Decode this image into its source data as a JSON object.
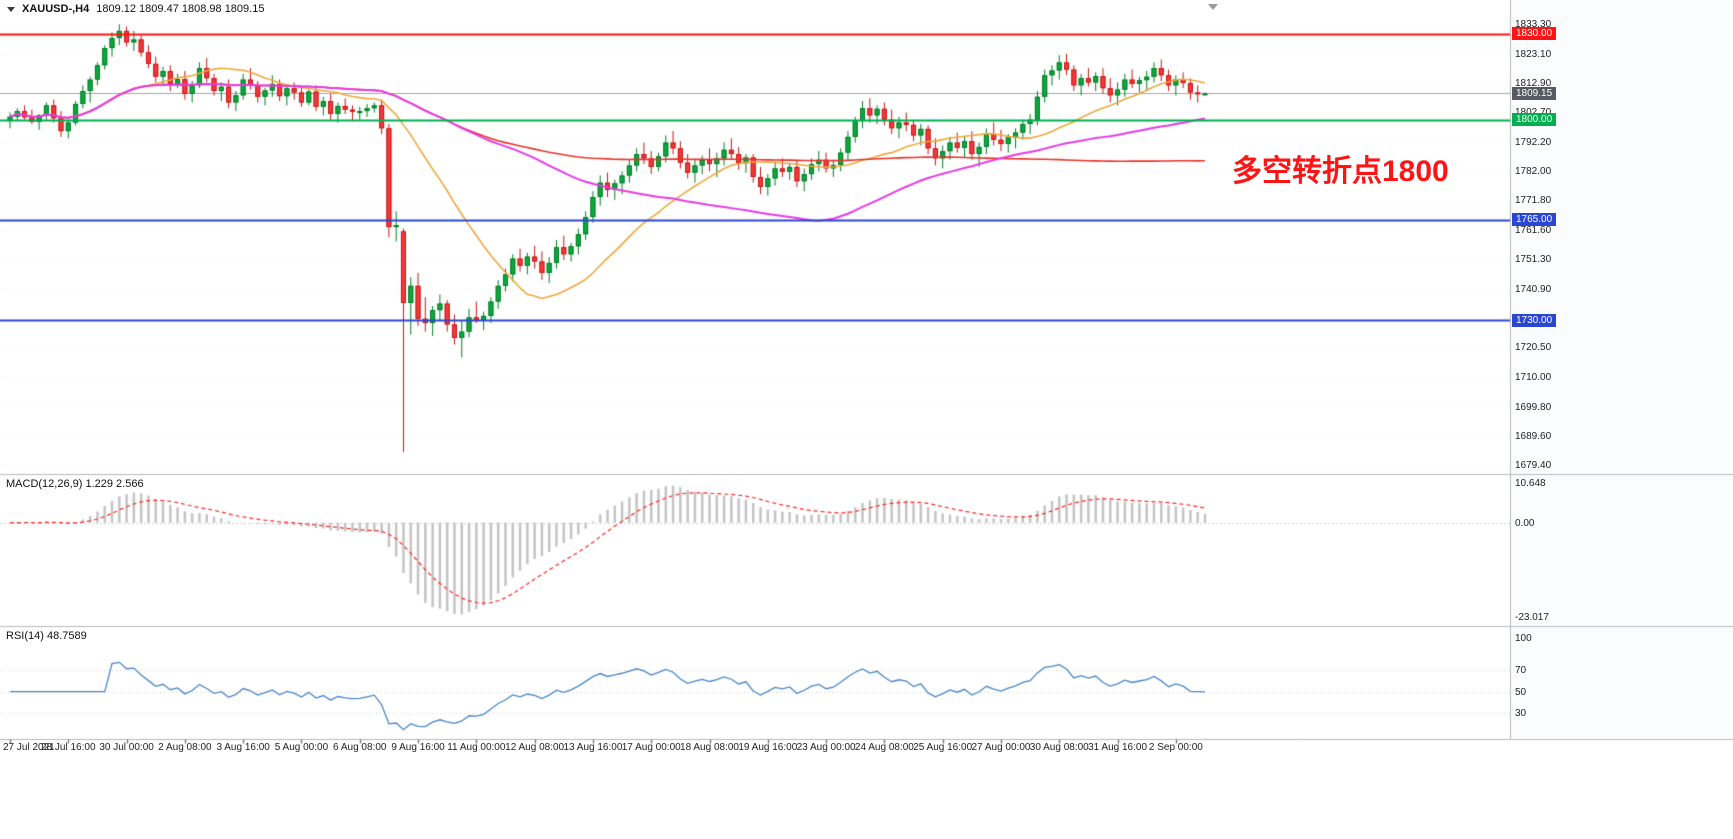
{
  "window": {
    "symbol_period": "XAUUSD-,H4",
    "ohlc": "1809.12 1809.47 1808.98 1809.15"
  },
  "chart_data": {
    "type": "candlestick",
    "title": "XAUUSD-,H4",
    "symbol": "XAUUSD-",
    "timeframe": "H4",
    "ohlc_display": {
      "open": "1809.12",
      "high": "1809.47",
      "low": "1808.98",
      "close": "1809.15"
    },
    "price_axis_range": [
      1677.0,
      1835.5
    ],
    "price_axis_labels": [
      "1833.30",
      "1823.10",
      "1812.90",
      "1802.70",
      "1792.20",
      "1782.00",
      "1771.80",
      "1761.60",
      "1751.30",
      "1740.90",
      "1720.50",
      "1710.00",
      "1699.80",
      "1689.60",
      "1679.40"
    ],
    "time_axis_labels": [
      "27 Jul 2021",
      "28 Jul 16:00",
      "30 Jul 00:00",
      "2 Aug 08:00",
      "3 Aug 16:00",
      "5 Aug 00:00",
      "6 Aug 08:00",
      "9 Aug 16:00",
      "11 Aug 00:00",
      "12 Aug 08:00",
      "13 Aug 16:00",
      "17 Aug 00:00",
      "18 Aug 08:00",
      "19 Aug 16:00",
      "23 Aug 00:00",
      "24 Aug 08:00",
      "25 Aug 16:00",
      "27 Aug 00:00",
      "30 Aug 08:00",
      "31 Aug 16:00",
      "2 Sep 00:00"
    ],
    "horizontal_lines": [
      {
        "value": 1830.0,
        "label": "1830.00",
        "color": "#fe1414",
        "text_color": "#ffffff"
      },
      {
        "value": 1800.0,
        "label": "1800.00",
        "color": "#00b050",
        "text_color": "#ffffff"
      },
      {
        "value": 1765.0,
        "label": "1765.00",
        "color": "#2c47cf",
        "text_color": "#ffffff"
      },
      {
        "value": 1730.0,
        "label": "1730.00",
        "color": "#2c47cf",
        "text_color": "#ffffff"
      }
    ],
    "current_price": {
      "value": 1809.15,
      "label": "1809.15",
      "line_color": "#a8a8a8",
      "badge_color": "#555b61"
    },
    "annotation": {
      "text": "多空转折点1800",
      "color": "#fe1414"
    },
    "candle_colors": {
      "up_fill": "#0ca93c",
      "up_border": "#067d2a",
      "down_fill": "#f23a3a",
      "down_border": "#c91616"
    },
    "moving_averages": [
      {
        "name": "fast-ma",
        "period": 20,
        "color": "#efa93f"
      },
      {
        "name": "slow-ma",
        "period": 130,
        "color": "#e8332a"
      },
      {
        "name": "mid-ma",
        "period": 60,
        "color": "#e53ce5"
      }
    ],
    "indicators": {
      "macd": {
        "label": "MACD(12,26,9) 1.229 2.566",
        "params": [
          12,
          26,
          9
        ],
        "current_values": [
          1.229,
          2.566
        ],
        "scale_labels": [
          "10.648",
          "0.00",
          "-23.017"
        ],
        "histogram_color": "#c4c4c4",
        "signal_color": "#ff2a2a"
      },
      "rsi": {
        "label": "RSI(14) 48.7589",
        "period": 14,
        "current_value": 48.7589,
        "scale_labels": [
          "100",
          "70",
          "50",
          "30"
        ],
        "scale_values": [
          100,
          70,
          50,
          30
        ],
        "display_range": [
          8,
          107
        ],
        "line_color": "#4a87c8"
      }
    },
    "candles": [
      [
        1799.5,
        1802.5,
        1797.0,
        1801.0
      ],
      [
        1801.0,
        1804.0,
        1799.5,
        1803.0
      ],
      [
        1803.0,
        1805.0,
        1800.0,
        1800.8
      ],
      [
        1800.8,
        1803.5,
        1798.5,
        1799.2
      ],
      [
        1799.2,
        1802.0,
        1796.5,
        1801.5
      ],
      [
        1801.5,
        1806.0,
        1800.0,
        1805.0
      ],
      [
        1805.0,
        1807.0,
        1799.0,
        1800.5
      ],
      [
        1800.5,
        1803.0,
        1794.0,
        1796.0
      ],
      [
        1796.0,
        1800.0,
        1793.5,
        1799.0
      ],
      [
        1799.0,
        1806.5,
        1798.0,
        1805.5
      ],
      [
        1805.5,
        1812.0,
        1804.0,
        1810.0
      ],
      [
        1810.0,
        1815.0,
        1806.0,
        1814.0
      ],
      [
        1814.0,
        1820.0,
        1812.0,
        1819.0
      ],
      [
        1819.0,
        1826.0,
        1817.5,
        1825.0
      ],
      [
        1825.0,
        1830.5,
        1822.0,
        1828.5
      ],
      [
        1828.5,
        1833.3,
        1826.0,
        1831.0
      ],
      [
        1831.0,
        1832.5,
        1825.5,
        1827.0
      ],
      [
        1827.0,
        1831.0,
        1824.0,
        1828.0
      ],
      [
        1828.0,
        1829.5,
        1822.0,
        1823.5
      ],
      [
        1823.5,
        1826.0,
        1818.0,
        1819.5
      ],
      [
        1819.5,
        1822.0,
        1813.0,
        1815.0
      ],
      [
        1815.0,
        1818.5,
        1812.0,
        1817.0
      ],
      [
        1817.0,
        1819.0,
        1810.0,
        1812.5
      ],
      [
        1812.5,
        1816.0,
        1811.0,
        1814.2
      ],
      [
        1814.2,
        1817.0,
        1807.0,
        1809.0
      ],
      [
        1809.0,
        1813.5,
        1806.0,
        1812.0
      ],
      [
        1812.0,
        1820.0,
        1811.0,
        1818.0
      ],
      [
        1818.0,
        1821.5,
        1813.0,
        1814.5
      ],
      [
        1814.5,
        1816.0,
        1808.5,
        1810.0
      ],
      [
        1810.0,
        1813.0,
        1806.5,
        1811.5
      ],
      [
        1811.5,
        1814.0,
        1804.0,
        1806.0
      ],
      [
        1806.0,
        1810.0,
        1803.0,
        1808.5
      ],
      [
        1808.5,
        1816.0,
        1807.0,
        1814.0
      ],
      [
        1814.0,
        1818.0,
        1810.5,
        1812.0
      ],
      [
        1812.0,
        1813.5,
        1806.0,
        1808.0
      ],
      [
        1808.0,
        1811.0,
        1805.0,
        1810.2
      ],
      [
        1810.2,
        1815.5,
        1808.0,
        1812.5
      ],
      [
        1812.5,
        1814.0,
        1806.5,
        1808.2
      ],
      [
        1808.2,
        1812.0,
        1805.0,
        1811.0
      ],
      [
        1811.0,
        1813.0,
        1807.0,
        1809.5
      ],
      [
        1809.5,
        1811.5,
        1804.5,
        1806.0
      ],
      [
        1806.0,
        1810.5,
        1805.0,
        1809.8
      ],
      [
        1809.8,
        1812.0,
        1803.0,
        1804.5
      ],
      [
        1804.5,
        1808.0,
        1801.5,
        1806.5
      ],
      [
        1806.5,
        1809.0,
        1800.0,
        1802.0
      ],
      [
        1802.0,
        1806.0,
        1799.0,
        1804.8
      ],
      [
        1804.8,
        1807.5,
        1802.0,
        1803.5
      ],
      [
        1803.5,
        1805.0,
        1799.5,
        1802.8
      ],
      [
        1802.8,
        1804.5,
        1800.0,
        1803.0
      ],
      [
        1803.0,
        1805.5,
        1801.0,
        1804.0
      ],
      [
        1804.0,
        1806.0,
        1802.5,
        1805.0
      ],
      [
        1805.0,
        1807.0,
        1795.0,
        1797.0
      ],
      [
        1797.0,
        1798.5,
        1759.0,
        1762.5
      ],
      [
        1762.5,
        1768.0,
        1757.5,
        1763.2
      ],
      [
        1761.0,
        1762.0,
        1684.0,
        1736.0
      ],
      [
        1736.0,
        1745.0,
        1725.0,
        1742.0
      ],
      [
        1742.0,
        1746.5,
        1728.0,
        1730.5
      ],
      [
        1730.5,
        1738.0,
        1726.0,
        1729.0
      ],
      [
        1729.0,
        1735.0,
        1724.5,
        1733.5
      ],
      [
        1733.5,
        1739.0,
        1730.0,
        1735.8
      ],
      [
        1735.8,
        1737.0,
        1726.0,
        1728.5
      ],
      [
        1728.5,
        1732.0,
        1721.5,
        1723.8
      ],
      [
        1723.8,
        1730.0,
        1717.0,
        1726.0
      ],
      [
        1726.0,
        1734.0,
        1724.0,
        1731.0
      ],
      [
        1731.0,
        1736.5,
        1729.0,
        1729.8
      ],
      [
        1729.8,
        1733.0,
        1726.5,
        1731.5
      ],
      [
        1731.5,
        1738.0,
        1729.0,
        1736.5
      ],
      [
        1736.5,
        1744.0,
        1734.0,
        1742.0
      ],
      [
        1742.0,
        1748.0,
        1740.0,
        1746.0
      ],
      [
        1746.0,
        1753.0,
        1743.5,
        1751.5
      ],
      [
        1751.5,
        1755.0,
        1747.0,
        1749.0
      ],
      [
        1749.0,
        1753.5,
        1746.0,
        1752.2
      ],
      [
        1752.2,
        1756.0,
        1748.0,
        1750.5
      ],
      [
        1750.5,
        1754.0,
        1744.0,
        1746.5
      ],
      [
        1746.5,
        1752.0,
        1743.0,
        1750.0
      ],
      [
        1750.0,
        1758.0,
        1748.0,
        1755.5
      ],
      [
        1755.5,
        1759.5,
        1751.0,
        1753.0
      ],
      [
        1753.0,
        1757.0,
        1750.5,
        1755.8
      ],
      [
        1755.8,
        1762.0,
        1753.0,
        1760.0
      ],
      [
        1760.0,
        1768.0,
        1758.0,
        1766.0
      ],
      [
        1766.0,
        1775.0,
        1764.0,
        1773.0
      ],
      [
        1773.0,
        1780.5,
        1770.0,
        1778.0
      ],
      [
        1778.0,
        1781.5,
        1773.0,
        1775.5
      ],
      [
        1775.5,
        1779.0,
        1772.0,
        1777.8
      ],
      [
        1777.8,
        1782.0,
        1774.0,
        1780.5
      ],
      [
        1780.5,
        1786.0,
        1778.0,
        1784.0
      ],
      [
        1784.0,
        1790.0,
        1782.0,
        1788.0
      ],
      [
        1788.0,
        1792.0,
        1784.5,
        1786.5
      ],
      [
        1786.5,
        1789.0,
        1781.0,
        1783.5
      ],
      [
        1783.5,
        1788.5,
        1782.0,
        1787.2
      ],
      [
        1787.2,
        1794.5,
        1785.0,
        1792.0
      ],
      [
        1792.0,
        1796.0,
        1788.0,
        1790.0
      ],
      [
        1790.0,
        1792.5,
        1783.0,
        1785.0
      ],
      [
        1785.0,
        1788.0,
        1779.5,
        1781.5
      ],
      [
        1781.5,
        1786.0,
        1778.0,
        1784.0
      ],
      [
        1784.0,
        1787.5,
        1781.0,
        1786.0
      ],
      [
        1786.0,
        1790.0,
        1782.0,
        1784.5
      ],
      [
        1784.5,
        1788.5,
        1780.0,
        1786.5
      ],
      [
        1786.5,
        1792.0,
        1784.0,
        1789.5
      ],
      [
        1789.5,
        1793.5,
        1786.0,
        1788.0
      ],
      [
        1788.0,
        1790.5,
        1782.5,
        1784.8
      ],
      [
        1784.8,
        1788.0,
        1781.5,
        1786.8
      ],
      [
        1786.8,
        1788.0,
        1778.0,
        1780.0
      ],
      [
        1780.0,
        1783.5,
        1774.0,
        1776.5
      ],
      [
        1776.5,
        1781.0,
        1773.5,
        1779.5
      ],
      [
        1779.5,
        1785.0,
        1777.0,
        1783.0
      ],
      [
        1783.0,
        1786.5,
        1780.0,
        1781.8
      ],
      [
        1781.8,
        1785.0,
        1779.0,
        1783.5
      ],
      [
        1783.5,
        1786.0,
        1776.5,
        1778.5
      ],
      [
        1778.5,
        1783.0,
        1775.0,
        1781.0
      ],
      [
        1781.0,
        1786.5,
        1779.0,
        1784.5
      ],
      [
        1784.5,
        1789.0,
        1782.0,
        1786.0
      ],
      [
        1786.0,
        1788.5,
        1781.5,
        1783.0
      ],
      [
        1783.0,
        1786.0,
        1780.0,
        1784.2
      ],
      [
        1784.2,
        1790.0,
        1782.0,
        1788.5
      ],
      [
        1788.5,
        1796.0,
        1786.0,
        1794.0
      ],
      [
        1794.0,
        1801.0,
        1792.0,
        1799.5
      ],
      [
        1799.5,
        1806.5,
        1797.0,
        1804.0
      ],
      [
        1804.0,
        1807.5,
        1799.0,
        1801.5
      ],
      [
        1801.5,
        1805.0,
        1798.5,
        1803.8
      ],
      [
        1803.8,
        1806.0,
        1798.0,
        1800.0
      ],
      [
        1800.0,
        1803.5,
        1795.0,
        1797.0
      ],
      [
        1797.0,
        1801.0,
        1793.5,
        1799.0
      ],
      [
        1799.0,
        1802.5,
        1796.0,
        1798.2
      ],
      [
        1798.2,
        1800.0,
        1792.5,
        1794.5
      ],
      [
        1794.5,
        1798.5,
        1791.0,
        1796.8
      ],
      [
        1796.8,
        1798.0,
        1788.0,
        1790.0
      ],
      [
        1790.0,
        1793.5,
        1784.0,
        1786.5
      ],
      [
        1786.5,
        1791.0,
        1783.0,
        1789.0
      ],
      [
        1789.0,
        1794.0,
        1786.0,
        1792.0
      ],
      [
        1792.0,
        1795.5,
        1788.5,
        1790.2
      ],
      [
        1790.2,
        1794.0,
        1787.0,
        1792.5
      ],
      [
        1792.5,
        1796.0,
        1786.0,
        1788.0
      ],
      [
        1788.0,
        1792.0,
        1783.5,
        1790.5
      ],
      [
        1790.5,
        1797.0,
        1788.0,
        1795.0
      ],
      [
        1795.0,
        1799.0,
        1791.0,
        1793.0
      ],
      [
        1793.0,
        1796.5,
        1789.0,
        1791.5
      ],
      [
        1791.5,
        1795.0,
        1788.5,
        1793.8
      ],
      [
        1793.8,
        1797.0,
        1790.0,
        1795.5
      ],
      [
        1795.5,
        1800.0,
        1793.0,
        1798.5
      ],
      [
        1798.5,
        1802.0,
        1795.0,
        1800.0
      ],
      [
        1800.0,
        1810.0,
        1798.0,
        1808.0
      ],
      [
        1808.0,
        1817.5,
        1806.0,
        1815.5
      ],
      [
        1815.5,
        1819.0,
        1812.0,
        1817.2
      ],
      [
        1817.2,
        1822.5,
        1814.0,
        1820.0
      ],
      [
        1820.0,
        1823.0,
        1815.5,
        1817.5
      ],
      [
        1817.5,
        1819.0,
        1810.0,
        1812.0
      ],
      [
        1812.0,
        1816.0,
        1808.5,
        1814.5
      ],
      [
        1814.5,
        1818.0,
        1811.5,
        1813.0
      ],
      [
        1813.0,
        1816.5,
        1810.0,
        1815.2
      ],
      [
        1815.2,
        1818.0,
        1809.0,
        1811.0
      ],
      [
        1811.0,
        1814.5,
        1806.0,
        1808.5
      ],
      [
        1808.5,
        1813.0,
        1805.0,
        1810.5
      ],
      [
        1810.5,
        1816.0,
        1808.0,
        1814.0
      ],
      [
        1814.0,
        1817.5,
        1811.0,
        1812.5
      ],
      [
        1812.5,
        1815.0,
        1809.5,
        1813.8
      ],
      [
        1813.8,
        1817.0,
        1810.0,
        1815.0
      ],
      [
        1815.0,
        1820.0,
        1813.0,
        1818.0
      ],
      [
        1818.0,
        1821.0,
        1813.5,
        1815.5
      ],
      [
        1815.5,
        1817.5,
        1810.0,
        1812.0
      ],
      [
        1812.0,
        1815.5,
        1808.5,
        1814.2
      ],
      [
        1814.2,
        1816.5,
        1811.0,
        1812.8
      ],
      [
        1812.8,
        1814.5,
        1807.0,
        1809.5
      ],
      [
        1809.5,
        1812.0,
        1806.0,
        1809.3
      ],
      [
        1809.12,
        1809.47,
        1808.98,
        1809.15
      ]
    ]
  }
}
